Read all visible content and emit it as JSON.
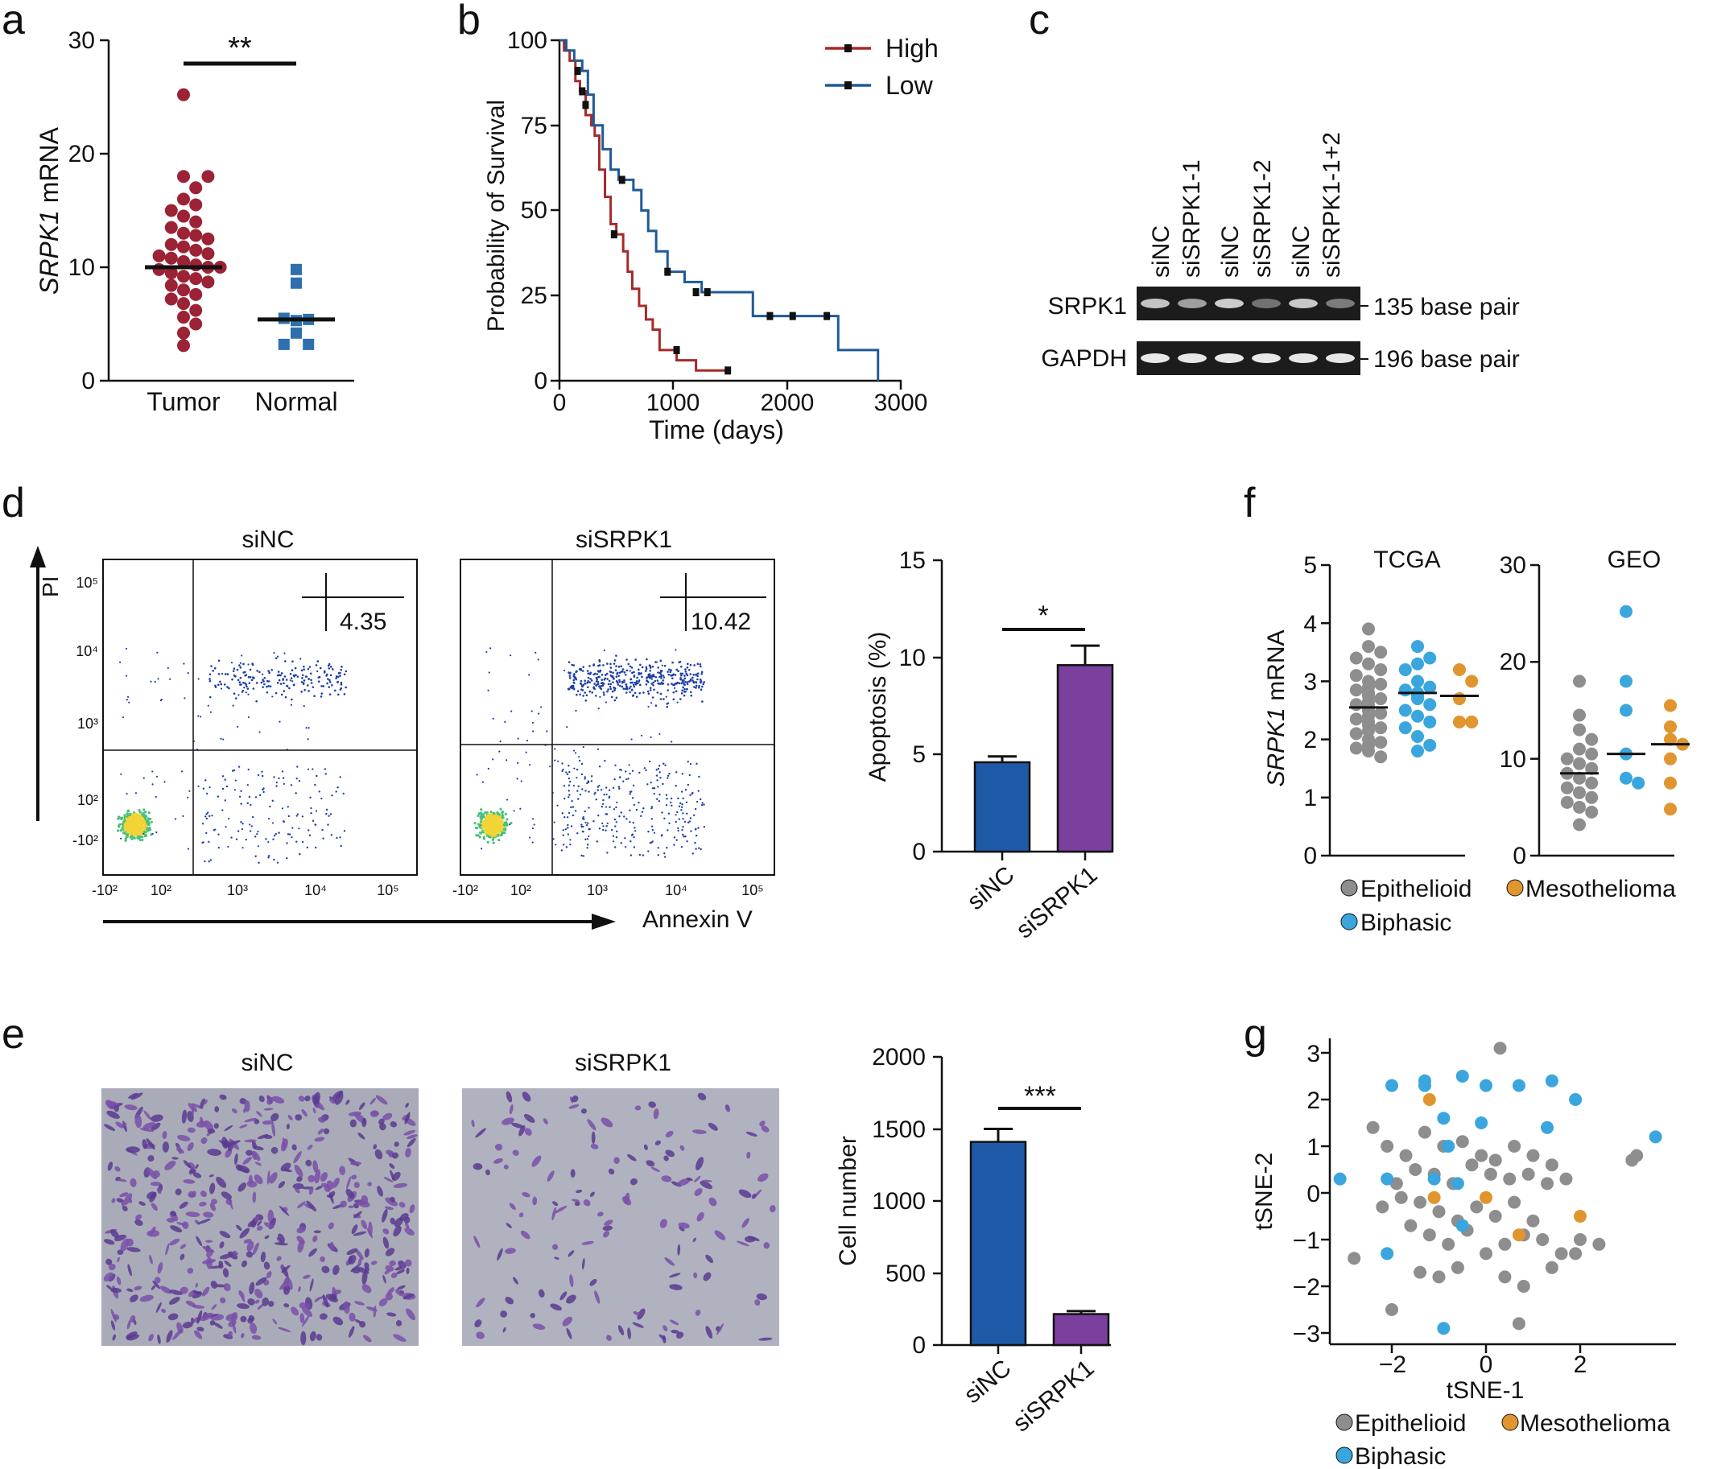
{
  "panels": {
    "a": {
      "letter": "a",
      "ylabel_italic": "SRPK1",
      "ylabel_rest": " mRNA",
      "yticks": [
        "0",
        "10",
        "20",
        "30"
      ],
      "categories": [
        "Tumor",
        "Normal"
      ],
      "sig": "**",
      "colors": {
        "tumor": "#9b2335",
        "normal": "#2f6fad"
      }
    },
    "b": {
      "letter": "b",
      "ylabel": "Probability of Survival",
      "xlabel": "Time (days)",
      "yticks": [
        "0",
        "25",
        "50",
        "75",
        "100"
      ],
      "xticks": [
        "0",
        "1000",
        "2000",
        "3000"
      ],
      "legend": [
        "High",
        "Low"
      ],
      "colors": {
        "High": "#a52a2a",
        "Low": "#1f5a96"
      }
    },
    "c": {
      "letter": "c",
      "lanes": [
        "siNC",
        "siSRPK1-1",
        "siNC",
        "siSRPK1-2",
        "siNC",
        "siSRPK1-1+2"
      ],
      "rows": [
        {
          "name": "SRPK1",
          "size": "135 base pair",
          "intensity": [
            0.75,
            0.55,
            0.8,
            0.3,
            0.78,
            0.35
          ]
        },
        {
          "name": "GAPDH",
          "size": "196 base pair",
          "intensity": [
            0.95,
            0.95,
            0.95,
            0.95,
            0.95,
            0.95
          ]
        }
      ]
    },
    "d": {
      "letter": "d",
      "plots": [
        {
          "title": "siNC",
          "quadrant_value": "4.35"
        },
        {
          "title": "siSRPK1",
          "quadrant_value": "10.42"
        }
      ],
      "y_axis_label": "PI",
      "x_axis_label": "Annexin V",
      "flow_xticks": [
        "-10²",
        "10²",
        "10³",
        "10⁴",
        "10⁵"
      ],
      "flow_yticks": [
        "10⁵",
        "10⁴",
        "10³",
        "10²",
        "-10²"
      ],
      "bar_ylabel": "Apoptosis (%)",
      "bar_yticks": [
        "0",
        "5",
        "10",
        "15"
      ],
      "bar_categories": [
        "siNC",
        "siSRPK1"
      ],
      "sig": "*"
    },
    "e": {
      "letter": "e",
      "images": [
        "siNC",
        "siSRPK1"
      ],
      "bar_ylabel": "Cell number",
      "bar_yticks": [
        "0",
        "500",
        "1000",
        "1500",
        "2000"
      ],
      "bar_categories": [
        "siNC",
        "siSRPK1"
      ],
      "sig": "***"
    },
    "f": {
      "letter": "f",
      "ylabel_italic": "SRPK1",
      "ylabel_rest": " mRNA",
      "titles": [
        "TCGA",
        "GEO"
      ],
      "yticks_tcga": [
        "0",
        "1",
        "2",
        "3",
        "4",
        "5"
      ],
      "yticks_geo": [
        "0",
        "10",
        "20",
        "30"
      ],
      "legend": [
        "Epithelioid",
        "Mesothelioma",
        "Biphasic"
      ]
    },
    "g": {
      "letter": "g",
      "xlabel": "tSNE-1",
      "ylabel": "tSNE-2",
      "xticks": [
        "−2",
        "0",
        "2"
      ],
      "yticks": [
        "3",
        "2",
        "1",
        "0",
        "−1",
        "−2",
        "−3"
      ],
      "legend": [
        "Epithelioid",
        "Mesothelioma",
        "Biphasic"
      ]
    }
  },
  "colors": {
    "epithelioid": "#8e8e8e",
    "biphasic": "#3aa6dd",
    "mesothelioma": "#e0952f",
    "bar_sinc": "#1f5aa8",
    "bar_sisrpk1": "#7b3f9e"
  },
  "chart_data": [
    {
      "type": "scatter",
      "panel": "a",
      "ylabel": "SRPK1 mRNA",
      "ylim": [
        0,
        30
      ],
      "categories": [
        "Tumor",
        "Normal"
      ],
      "series": [
        {
          "name": "Tumor",
          "median": 10,
          "values": [
            25.2,
            18,
            18,
            17,
            16,
            15.5,
            15,
            14.5,
            14,
            13.5,
            13,
            12.8,
            12.5,
            12,
            11.8,
            11.5,
            11.2,
            11,
            10.8,
            10.5,
            10.2,
            10,
            10,
            9.8,
            9.5,
            9.2,
            9,
            8.7,
            8.4,
            8,
            7.6,
            7.2,
            6.8,
            6.2,
            5.6,
            5,
            4.2,
            3.1
          ]
        },
        {
          "name": "Normal",
          "median": 5.4,
          "values": [
            9.8,
            8.6,
            5.3,
            5.4,
            5.5,
            4.2,
            3.2,
            3.2
          ]
        }
      ],
      "annotations": [
        "**"
      ]
    },
    {
      "type": "line",
      "panel": "b",
      "xlabel": "Time (days)",
      "ylabel": "Probability of Survival",
      "xlim": [
        0,
        3000
      ],
      "ylim": [
        0,
        100
      ],
      "series": [
        {
          "name": "High",
          "x": [
            0,
            40,
            90,
            140,
            180,
            230,
            280,
            310,
            350,
            400,
            450,
            500,
            560,
            600,
            640,
            700,
            760,
            820,
            880,
            1000,
            1030,
            1200,
            1380,
            1480
          ],
          "y": [
            100,
            97,
            94,
            88,
            85,
            78,
            75,
            72,
            62,
            54,
            46,
            43,
            38,
            32,
            27,
            22,
            18,
            15,
            9,
            9,
            6,
            3,
            3,
            3
          ]
        },
        {
          "name": "Low",
          "x": [
            0,
            60,
            130,
            200,
            250,
            300,
            380,
            450,
            520,
            600,
            650,
            720,
            780,
            850,
            950,
            1100,
            1250,
            1500,
            1700,
            2000,
            2450,
            2800
          ],
          "y": [
            100,
            97,
            94,
            91,
            84,
            75,
            68,
            62,
            59,
            59,
            56,
            50,
            44,
            38,
            32,
            29,
            26,
            26,
            19,
            19,
            9,
            0
          ]
        }
      ]
    },
    {
      "type": "bar",
      "panel": "d",
      "ylabel": "Apoptosis (%)",
      "ylim": [
        0,
        15
      ],
      "categories": [
        "siNC",
        "siSRPK1"
      ],
      "values": [
        4.6,
        9.6
      ],
      "errors": [
        0.3,
        1.0
      ],
      "annotations": [
        "*"
      ]
    },
    {
      "type": "bar",
      "panel": "e",
      "ylabel": "Cell number",
      "ylim": [
        0,
        2000
      ],
      "categories": [
        "siNC",
        "siSRPK1"
      ],
      "values": [
        1410,
        215
      ],
      "errors": [
        90,
        20
      ],
      "annotations": [
        "***"
      ]
    },
    {
      "type": "scatter",
      "panel": "f-TCGA",
      "title": "TCGA",
      "ylabel": "SRPK1 mRNA",
      "ylim": [
        0,
        5
      ],
      "series": [
        {
          "name": "Epithelioid",
          "median": 2.55,
          "values": [
            3.9,
            3.6,
            3.5,
            3.4,
            3.3,
            3.2,
            3.1,
            3.0,
            2.95,
            2.9,
            2.85,
            2.8,
            2.75,
            2.7,
            2.65,
            2.6,
            2.58,
            2.55,
            2.5,
            2.45,
            2.4,
            2.35,
            2.3,
            2.25,
            2.2,
            2.15,
            2.1,
            2.0,
            1.95,
            1.9,
            1.85,
            1.8,
            1.7
          ]
        },
        {
          "name": "Biphasic",
          "median": 2.8,
          "values": [
            3.6,
            3.4,
            3.3,
            3.2,
            3.0,
            2.9,
            2.85,
            2.8,
            2.75,
            2.7,
            2.6,
            2.5,
            2.4,
            2.3,
            2.2,
            2.05,
            1.9,
            1.8
          ]
        },
        {
          "name": "Mesothelioma",
          "median": 2.75,
          "values": [
            3.2,
            3.0,
            2.7,
            2.3,
            2.3
          ]
        }
      ]
    },
    {
      "type": "scatter",
      "panel": "f-GEO",
      "title": "GEO",
      "ylim": [
        0,
        30
      ],
      "series": [
        {
          "name": "Epithelioid",
          "median": 8.5,
          "values": [
            18,
            14.5,
            13,
            12,
            11,
            10.5,
            10,
            9.5,
            9,
            8.5,
            8,
            7.5,
            7,
            6.5,
            6,
            5.5,
            5,
            4.5,
            3.2
          ]
        },
        {
          "name": "Biphasic",
          "median": 10.5,
          "values": [
            25.2,
            18,
            15,
            10.5,
            8,
            7.5
          ]
        },
        {
          "name": "Mesothelioma",
          "median": 11.5,
          "values": [
            15.5,
            13.3,
            12,
            11.5,
            10,
            7.5,
            4.8
          ]
        }
      ]
    },
    {
      "type": "scatter",
      "panel": "g",
      "xlabel": "tSNE-1",
      "ylabel": "tSNE-2",
      "xlim": [
        -3.3,
        3.8
      ],
      "ylim": [
        -3.2,
        3.2
      ],
      "series": [
        {
          "name": "Epithelioid",
          "x": [
            0.3,
            -2.4,
            -2.1,
            -1.7,
            -1.3,
            -0.9,
            -0.5,
            -0.1,
            0.2,
            0.6,
            1.0,
            1.4,
            -1.9,
            -1.5,
            -1.1,
            -0.7,
            -0.3,
            0.1,
            0.5,
            0.9,
            1.3,
            1.7,
            -2.2,
            -1.8,
            -1.4,
            -1.0,
            -0.6,
            -0.2,
            0.2,
            0.6,
            1.0,
            -1.6,
            -1.2,
            -0.8,
            -0.4,
            0.0,
            0.4,
            0.8,
            1.2,
            1.6,
            2.0,
            2.4,
            -2.8,
            -1.4,
            -1.0,
            -0.6,
            0.4,
            0.8,
            1.4,
            1.9,
            -2.0,
            0.7,
            3.1,
            3.2
          ],
          "y": [
            3.1,
            1.4,
            1.0,
            0.8,
            1.3,
            1.0,
            1.1,
            0.8,
            0.7,
            1.0,
            0.8,
            0.6,
            0.2,
            0.5,
            0.4,
            0.2,
            0.6,
            0.4,
            0.3,
            0.4,
            0.2,
            0.3,
            -0.3,
            -0.1,
            -0.2,
            -0.4,
            -0.6,
            -0.3,
            -0.5,
            -0.2,
            -0.6,
            -0.7,
            -0.9,
            -1.1,
            -0.8,
            -1.3,
            -1.1,
            -0.9,
            -1.0,
            -1.3,
            -1.0,
            -1.1,
            -1.4,
            -1.7,
            -1.8,
            -1.6,
            -1.8,
            -2.0,
            -1.6,
            -1.3,
            -2.5,
            -2.8,
            0.7,
            0.8
          ]
        },
        {
          "name": "Biphasic",
          "x": [
            -2.0,
            -1.3,
            -1.3,
            -0.5,
            0.0,
            0.7,
            1.4,
            1.9,
            -0.9,
            -0.1,
            1.3,
            -0.8,
            -1.1,
            3.6,
            -3.1,
            -2.1,
            -0.6,
            -2.1,
            -0.5,
            -0.9
          ],
          "y": [
            2.3,
            2.4,
            2.3,
            2.5,
            2.3,
            2.3,
            2.4,
            2.0,
            1.6,
            1.5,
            1.4,
            1.0,
            0.3,
            1.2,
            0.3,
            0.3,
            0.2,
            -1.3,
            -0.7,
            -2.9
          ]
        },
        {
          "name": "Mesothelioma",
          "x": [
            -1.2,
            -1.1,
            0.0,
            0.7,
            2.0
          ],
          "y": [
            2.0,
            -0.1,
            -0.1,
            -0.9,
            -0.5
          ]
        }
      ]
    }
  ]
}
